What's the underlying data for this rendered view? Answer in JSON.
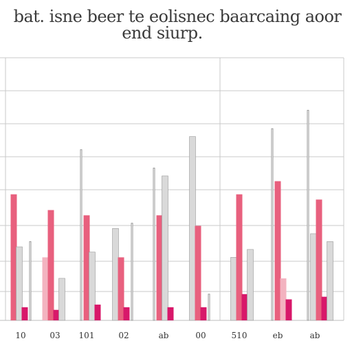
{
  "chart_data": {
    "type": "bar",
    "title": [
      "bat. isne beer te eolisnec baarcaing aoor",
      "end siurp."
    ],
    "xlabel": "",
    "ylabel": "",
    "tick_labels": [
      "10",
      "03",
      "101",
      "02",
      "ab",
      "00",
      "510",
      "eb",
      "ab"
    ],
    "ylim": [
      0,
      100
    ],
    "grid": true,
    "colors": {
      "pink": "#e8607e",
      "light_pink": "#f3b3c0",
      "magenta": "#d8186a",
      "grey": "#d9d9d9",
      "line": "#9a9a9a"
    },
    "groups": [
      {
        "label_index": 0,
        "bars": [
          {
            "kind": "pink",
            "value": 48
          },
          {
            "kind": "grey",
            "value": 28
          },
          {
            "kind": "magenta",
            "value": 5
          },
          {
            "kind": "line",
            "value": 30
          }
        ]
      },
      {
        "label_index": 1,
        "bars": [
          {
            "kind": "light_pink",
            "value": 24
          },
          {
            "kind": "pink",
            "value": 42
          },
          {
            "kind": "magenta",
            "value": 4
          },
          {
            "kind": "grey",
            "value": 16
          }
        ]
      },
      {
        "label_index": 2,
        "bars": [
          {
            "kind": "line",
            "value": 65
          },
          {
            "kind": "pink",
            "value": 40
          },
          {
            "kind": "grey",
            "value": 26
          },
          {
            "kind": "magenta",
            "value": 6
          }
        ]
      },
      {
        "label_index": 3,
        "bars": [
          {
            "kind": "grey",
            "value": 35
          },
          {
            "kind": "pink",
            "value": 24
          },
          {
            "kind": "magenta",
            "value": 5
          },
          {
            "kind": "line",
            "value": 37
          }
        ]
      },
      {
        "label_index": 4,
        "bars": [
          {
            "kind": "line",
            "value": 58
          },
          {
            "kind": "pink",
            "value": 40
          },
          {
            "kind": "grey",
            "value": 55
          },
          {
            "kind": "magenta",
            "value": 5
          }
        ]
      },
      {
        "label_index": 5,
        "bars": [
          {
            "kind": "grey",
            "value": 70
          },
          {
            "kind": "pink",
            "value": 36
          },
          {
            "kind": "magenta",
            "value": 5
          },
          {
            "kind": "line",
            "value": 10
          }
        ]
      },
      {
        "label_index": 6,
        "bars": [
          {
            "kind": "grey",
            "value": 24
          },
          {
            "kind": "pink",
            "value": 48
          },
          {
            "kind": "magenta",
            "value": 10
          },
          {
            "kind": "grey",
            "value": 27
          }
        ]
      },
      {
        "label_index": 7,
        "bars": [
          {
            "kind": "line",
            "value": 73
          },
          {
            "kind": "pink",
            "value": 53
          },
          {
            "kind": "light_pink",
            "value": 16
          },
          {
            "kind": "magenta",
            "value": 8
          }
        ]
      },
      {
        "label_index": 8,
        "bars": [
          {
            "kind": "line",
            "value": 80
          },
          {
            "kind": "grey",
            "value": 33
          },
          {
            "kind": "pink",
            "value": 46
          },
          {
            "kind": "magenta",
            "value": 9
          },
          {
            "kind": "grey",
            "value": 30
          }
        ]
      }
    ]
  }
}
